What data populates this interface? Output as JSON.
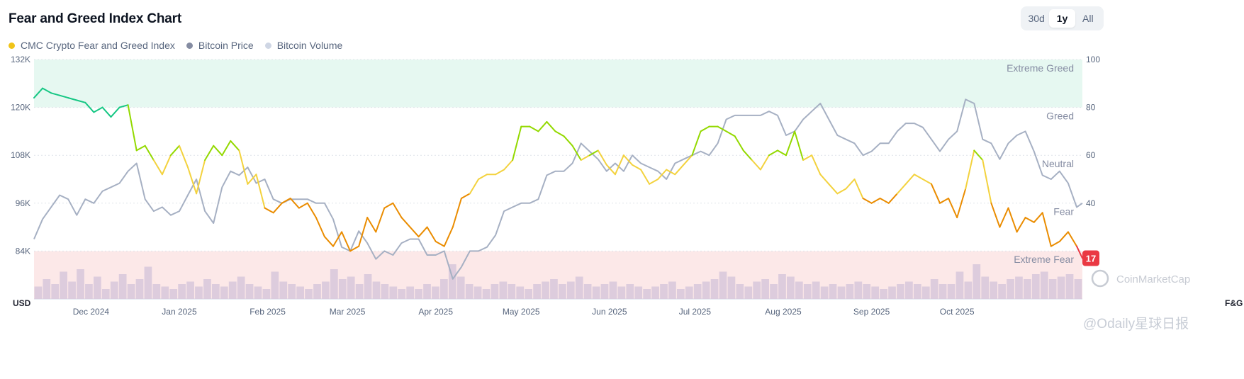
{
  "header": {
    "title": "Fear and Greed Index Chart",
    "timeframes": [
      "30d",
      "1y",
      "All"
    ],
    "active_timeframe": "1y"
  },
  "legend": [
    {
      "label": "CMC Crypto Fear and Greed Index",
      "color": "#f0c419"
    },
    {
      "label": "Bitcoin Price",
      "color": "#858ca2"
    },
    {
      "label": "Bitcoin Volume",
      "color": "#cfd6e4"
    }
  ],
  "watermark": {
    "brand": "CoinMarketCap",
    "source": "@Odaily星球日报"
  },
  "chart_data": {
    "type": "line",
    "x_tick_labels": [
      "Dec 2024",
      "Jan 2025",
      "Feb 2025",
      "Mar 2025",
      "Apr 2025",
      "May 2025",
      "Jun 2025",
      "Jul 2025",
      "Aug 2025",
      "Sep 2025",
      "Oct 2025"
    ],
    "x_tick_dates": [
      "2024-12-01",
      "2025-01-01",
      "2025-02-01",
      "2025-03-01",
      "2025-04-01",
      "2025-05-01",
      "2025-06-01",
      "2025-07-01",
      "2025-08-01",
      "2025-09-01",
      "2025-10-01"
    ],
    "x_range": [
      "2024-11-11",
      "2025-11-14"
    ],
    "left_axis": {
      "unit": "USD",
      "ticks": [
        "132K",
        "120K",
        "108K",
        "96K",
        "84K"
      ],
      "range": [
        72000,
        132000
      ]
    },
    "right_axis": {
      "unit": "F&G",
      "ticks": [
        100,
        80,
        60,
        40
      ],
      "range": [
        0,
        100
      ]
    },
    "zones": [
      {
        "label": "Extreme Greed",
        "range": [
          80,
          100
        ],
        "color": "#e6f8f1"
      },
      {
        "label": "Greed",
        "range": [
          60,
          80
        ]
      },
      {
        "label": "Neutral",
        "range": [
          40,
          60
        ]
      },
      {
        "label": "Fear",
        "range": [
          20,
          40
        ]
      },
      {
        "label": "Extreme Fear",
        "range": [
          0,
          20
        ],
        "color": "#fce8e8"
      }
    ],
    "current_value": 17,
    "series": [
      {
        "name": "CMC Crypto Fear and Greed Index",
        "axis": "right",
        "x": [
          "2024-11-11",
          "2024-11-14",
          "2024-11-17",
          "2024-11-20",
          "2024-11-23",
          "2024-11-26",
          "2024-11-29",
          "2024-12-02",
          "2024-12-05",
          "2024-12-08",
          "2024-12-11",
          "2024-12-14",
          "2024-12-17",
          "2024-12-20",
          "2024-12-23",
          "2024-12-26",
          "2024-12-29",
          "2025-01-01",
          "2025-01-04",
          "2025-01-07",
          "2025-01-10",
          "2025-01-13",
          "2025-01-16",
          "2025-01-19",
          "2025-01-22",
          "2025-01-25",
          "2025-01-28",
          "2025-01-31",
          "2025-02-03",
          "2025-02-06",
          "2025-02-09",
          "2025-02-12",
          "2025-02-15",
          "2025-02-18",
          "2025-02-21",
          "2025-02-24",
          "2025-02-27",
          "2025-03-02",
          "2025-03-05",
          "2025-03-08",
          "2025-03-11",
          "2025-03-14",
          "2025-03-17",
          "2025-03-20",
          "2025-03-23",
          "2025-03-26",
          "2025-03-29",
          "2025-04-01",
          "2025-04-04",
          "2025-04-07",
          "2025-04-10",
          "2025-04-13",
          "2025-04-16",
          "2025-04-19",
          "2025-04-22",
          "2025-04-25",
          "2025-04-28",
          "2025-05-01",
          "2025-05-04",
          "2025-05-07",
          "2025-05-10",
          "2025-05-13",
          "2025-05-16",
          "2025-05-19",
          "2025-05-22",
          "2025-05-25",
          "2025-05-28",
          "2025-05-31",
          "2025-06-03",
          "2025-06-06",
          "2025-06-09",
          "2025-06-12",
          "2025-06-15",
          "2025-06-18",
          "2025-06-21",
          "2025-06-24",
          "2025-06-27",
          "2025-06-30",
          "2025-07-03",
          "2025-07-06",
          "2025-07-09",
          "2025-07-12",
          "2025-07-15",
          "2025-07-18",
          "2025-07-21",
          "2025-07-24",
          "2025-07-27",
          "2025-07-30",
          "2025-08-02",
          "2025-08-05",
          "2025-08-08",
          "2025-08-11",
          "2025-08-14",
          "2025-08-17",
          "2025-08-20",
          "2025-08-23",
          "2025-08-26",
          "2025-08-29",
          "2025-09-01",
          "2025-09-04",
          "2025-09-07",
          "2025-09-10",
          "2025-09-13",
          "2025-09-16",
          "2025-09-19",
          "2025-09-22",
          "2025-09-25",
          "2025-09-28",
          "2025-10-01",
          "2025-10-04",
          "2025-10-07",
          "2025-10-10",
          "2025-10-13",
          "2025-10-16",
          "2025-10-19",
          "2025-10-22",
          "2025-10-25",
          "2025-10-28",
          "2025-10-31",
          "2025-11-03",
          "2025-11-06",
          "2025-11-09",
          "2025-11-12",
          "2025-11-14"
        ],
        "values": [
          84,
          88,
          86,
          85,
          84,
          83,
          82,
          78,
          80,
          76,
          80,
          81,
          62,
          64,
          58,
          52,
          60,
          64,
          55,
          44,
          58,
          64,
          60,
          66,
          62,
          48,
          52,
          38,
          36,
          40,
          42,
          38,
          40,
          34,
          26,
          22,
          28,
          20,
          22,
          34,
          28,
          38,
          40,
          34,
          30,
          26,
          30,
          24,
          22,
          30,
          42,
          44,
          50,
          52,
          52,
          54,
          58,
          72,
          72,
          70,
          74,
          70,
          68,
          64,
          58,
          60,
          62,
          56,
          52,
          60,
          56,
          54,
          48,
          50,
          54,
          52,
          56,
          60,
          70,
          72,
          72,
          70,
          68,
          62,
          58,
          54,
          60,
          62,
          60,
          70,
          58,
          60,
          52,
          48,
          44,
          46,
          50,
          42,
          40,
          42,
          40,
          44,
          48,
          52,
          50,
          48,
          40,
          42,
          34,
          46,
          62,
          58,
          40,
          30,
          38,
          28,
          34,
          32,
          36,
          22,
          24,
          28,
          22,
          17
        ]
      },
      {
        "name": "Bitcoin Price",
        "axis": "left",
        "x": [
          "2024-11-11",
          "2024-11-14",
          "2024-11-17",
          "2024-11-20",
          "2024-11-23",
          "2024-11-26",
          "2024-11-29",
          "2024-12-02",
          "2024-12-05",
          "2024-12-08",
          "2024-12-11",
          "2024-12-14",
          "2024-12-17",
          "2024-12-20",
          "2024-12-23",
          "2024-12-26",
          "2024-12-29",
          "2025-01-01",
          "2025-01-04",
          "2025-01-07",
          "2025-01-10",
          "2025-01-13",
          "2025-01-16",
          "2025-01-19",
          "2025-01-22",
          "2025-01-25",
          "2025-01-28",
          "2025-01-31",
          "2025-02-03",
          "2025-02-06",
          "2025-02-09",
          "2025-02-12",
          "2025-02-15",
          "2025-02-18",
          "2025-02-21",
          "2025-02-24",
          "2025-02-27",
          "2025-03-02",
          "2025-03-05",
          "2025-03-08",
          "2025-03-11",
          "2025-03-14",
          "2025-03-17",
          "2025-03-20",
          "2025-03-23",
          "2025-03-26",
          "2025-03-29",
          "2025-04-01",
          "2025-04-04",
          "2025-04-07",
          "2025-04-10",
          "2025-04-13",
          "2025-04-16",
          "2025-04-19",
          "2025-04-22",
          "2025-04-25",
          "2025-04-28",
          "2025-05-01",
          "2025-05-04",
          "2025-05-07",
          "2025-05-10",
          "2025-05-13",
          "2025-05-16",
          "2025-05-19",
          "2025-05-22",
          "2025-05-25",
          "2025-05-28",
          "2025-05-31",
          "2025-06-03",
          "2025-06-06",
          "2025-06-09",
          "2025-06-12",
          "2025-06-15",
          "2025-06-18",
          "2025-06-21",
          "2025-06-24",
          "2025-06-27",
          "2025-06-30",
          "2025-07-03",
          "2025-07-06",
          "2025-07-09",
          "2025-07-12",
          "2025-07-15",
          "2025-07-18",
          "2025-07-21",
          "2025-07-24",
          "2025-07-27",
          "2025-07-30",
          "2025-08-02",
          "2025-08-05",
          "2025-08-08",
          "2025-08-11",
          "2025-08-14",
          "2025-08-17",
          "2025-08-20",
          "2025-08-23",
          "2025-08-26",
          "2025-08-29",
          "2025-09-01",
          "2025-09-04",
          "2025-09-07",
          "2025-09-10",
          "2025-09-13",
          "2025-09-16",
          "2025-09-19",
          "2025-09-22",
          "2025-09-25",
          "2025-09-28",
          "2025-10-01",
          "2025-10-04",
          "2025-10-07",
          "2025-10-10",
          "2025-10-13",
          "2025-10-16",
          "2025-10-19",
          "2025-10-22",
          "2025-10-25",
          "2025-10-28",
          "2025-10-31",
          "2025-11-03",
          "2025-11-06",
          "2025-11-09",
          "2025-11-12",
          "2025-11-14"
        ],
        "values": [
          87000,
          92000,
          95000,
          98000,
          97000,
          93000,
          97000,
          96000,
          99000,
          100000,
          101000,
          104000,
          106000,
          97000,
          94000,
          95000,
          93000,
          94000,
          98000,
          102000,
          94000,
          91000,
          100000,
          104000,
          103000,
          105000,
          101000,
          102000,
          97000,
          96000,
          97000,
          97000,
          97000,
          96000,
          96000,
          92000,
          85000,
          84000,
          89000,
          86000,
          82000,
          84000,
          83000,
          86000,
          87000,
          87000,
          83000,
          83000,
          84000,
          77000,
          80000,
          84000,
          84000,
          85000,
          88000,
          94000,
          95000,
          96000,
          96000,
          97000,
          103000,
          104000,
          104000,
          106000,
          111000,
          109000,
          107000,
          104000,
          106000,
          104000,
          108000,
          106000,
          105000,
          104000,
          102000,
          106000,
          107000,
          108000,
          109000,
          108000,
          111000,
          117000,
          118000,
          118000,
          118000,
          118000,
          119000,
          118000,
          113000,
          114000,
          117000,
          119000,
          121000,
          117000,
          113000,
          112000,
          111000,
          108000,
          109000,
          111000,
          111000,
          114000,
          116000,
          116000,
          115000,
          112000,
          109000,
          112000,
          114000,
          122000,
          121000,
          112000,
          111000,
          107000,
          111000,
          113000,
          114000,
          109000,
          103000,
          102000,
          104000,
          101000,
          95000,
          96000
        ]
      }
    ],
    "volume": {
      "name": "Bitcoin Volume",
      "unit": "relative",
      "values": [
        0.25,
        0.4,
        0.3,
        0.55,
        0.35,
        0.6,
        0.3,
        0.45,
        0.2,
        0.35,
        0.5,
        0.3,
        0.4,
        0.65,
        0.3,
        0.25,
        0.2,
        0.3,
        0.35,
        0.25,
        0.4,
        0.3,
        0.25,
        0.35,
        0.45,
        0.3,
        0.25,
        0.2,
        0.55,
        0.35,
        0.3,
        0.25,
        0.2,
        0.3,
        0.35,
        0.6,
        0.4,
        0.45,
        0.3,
        0.5,
        0.35,
        0.3,
        0.25,
        0.2,
        0.25,
        0.2,
        0.3,
        0.25,
        0.4,
        0.7,
        0.45,
        0.3,
        0.25,
        0.2,
        0.3,
        0.35,
        0.3,
        0.25,
        0.2,
        0.3,
        0.35,
        0.4,
        0.3,
        0.35,
        0.45,
        0.3,
        0.25,
        0.3,
        0.35,
        0.25,
        0.3,
        0.25,
        0.2,
        0.25,
        0.3,
        0.35,
        0.2,
        0.25,
        0.3,
        0.35,
        0.4,
        0.55,
        0.45,
        0.3,
        0.25,
        0.35,
        0.4,
        0.3,
        0.5,
        0.45,
        0.35,
        0.3,
        0.35,
        0.25,
        0.3,
        0.25,
        0.3,
        0.35,
        0.3,
        0.25,
        0.2,
        0.25,
        0.3,
        0.35,
        0.3,
        0.25,
        0.4,
        0.3,
        0.3,
        0.55,
        0.35,
        0.7,
        0.45,
        0.35,
        0.3,
        0.4,
        0.45,
        0.4,
        0.5,
        0.55,
        0.4,
        0.45,
        0.5,
        0.4
      ]
    }
  }
}
